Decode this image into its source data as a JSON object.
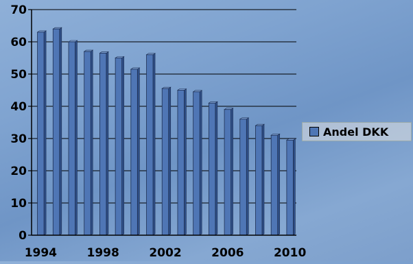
{
  "chart_data": {
    "type": "bar",
    "categories": [
      "1994",
      "1995",
      "1996",
      "1997",
      "1998",
      "1999",
      "2000",
      "2001",
      "2002",
      "2003",
      "2004",
      "2005",
      "2006",
      "2007",
      "2008",
      "2009",
      "2010"
    ],
    "series": [
      {
        "name": "Andel DKK",
        "values": [
          63,
          64,
          60,
          57,
          56.5,
          55,
          51.5,
          56,
          45.5,
          45,
          44.5,
          41,
          39,
          36,
          34,
          31,
          29.5
        ]
      }
    ],
    "x_tick_labels": [
      "1994",
      "1998",
      "2002",
      "2006",
      "2010"
    ],
    "y_ticks": [
      0,
      10,
      20,
      30,
      40,
      50,
      60,
      70
    ],
    "ylim": [
      0,
      70
    ],
    "grid": true,
    "legend_position": "right",
    "title": "",
    "xlabel": "",
    "ylabel": "",
    "colors": {
      "bar": "#4f76b5",
      "bar_dark": "#2f4f87",
      "bar_light": "#7ea2d6"
    }
  }
}
